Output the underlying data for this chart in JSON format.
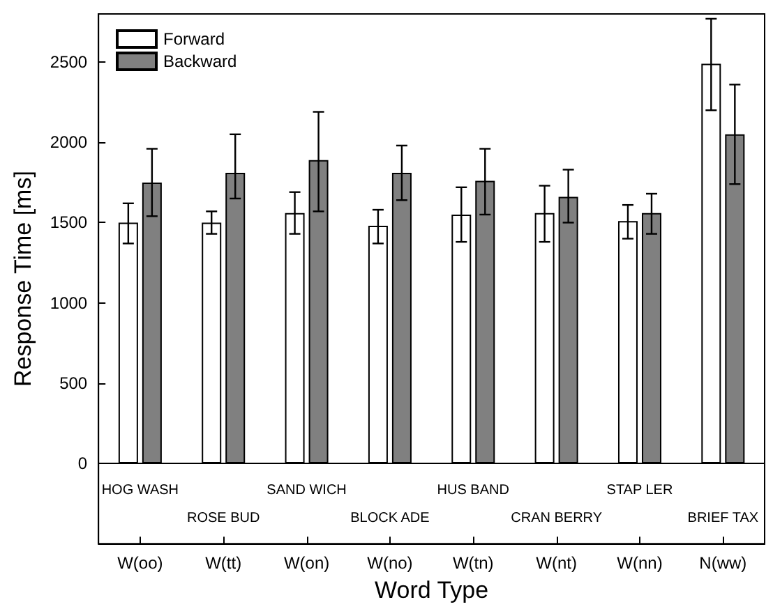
{
  "chart_data": {
    "type": "bar",
    "xlabel": "Word Type",
    "ylabel": "Response Time [ms]",
    "categories": [
      "W(oo)",
      "W(tt)",
      "W(on)",
      "W(no)",
      "W(tn)",
      "W(nt)",
      "W(nn)",
      "N(ww)"
    ],
    "series": [
      {
        "name": "Forward",
        "color": "#ffffff",
        "values": [
          1500,
          1500,
          1560,
          1480,
          1550,
          1560,
          1510,
          2490
        ],
        "errors": [
          [
            1370,
            1620
          ],
          [
            1430,
            1570
          ],
          [
            1430,
            1690
          ],
          [
            1370,
            1580
          ],
          [
            1380,
            1720
          ],
          [
            1380,
            1730
          ],
          [
            1400,
            1610
          ],
          [
            2200,
            2770
          ]
        ]
      },
      {
        "name": "Backward",
        "color": "#808080",
        "values": [
          1750,
          1810,
          1890,
          1810,
          1760,
          1660,
          1560,
          2050
        ],
        "errors": [
          [
            1540,
            1960
          ],
          [
            1650,
            2050
          ],
          [
            1570,
            2190
          ],
          [
            1640,
            1980
          ],
          [
            1550,
            1960
          ],
          [
            1500,
            1830
          ],
          [
            1430,
            1680
          ],
          [
            1740,
            2360
          ]
        ]
      }
    ],
    "ylim": [
      -500,
      2800
    ],
    "yticks": [
      0,
      500,
      1000,
      1500,
      2000,
      2500
    ],
    "legend": "top left",
    "ref_lines": [
      {
        "axis": "y",
        "value": 0,
        "color": "#000000"
      }
    ],
    "annotations": [
      "HOG WASH",
      "ROSE BUD",
      "SAND WICH",
      "BLOCK ADE",
      "HUS BAND",
      "CRAN BERRY",
      "STAP LER",
      "BRIEF TAX"
    ]
  }
}
